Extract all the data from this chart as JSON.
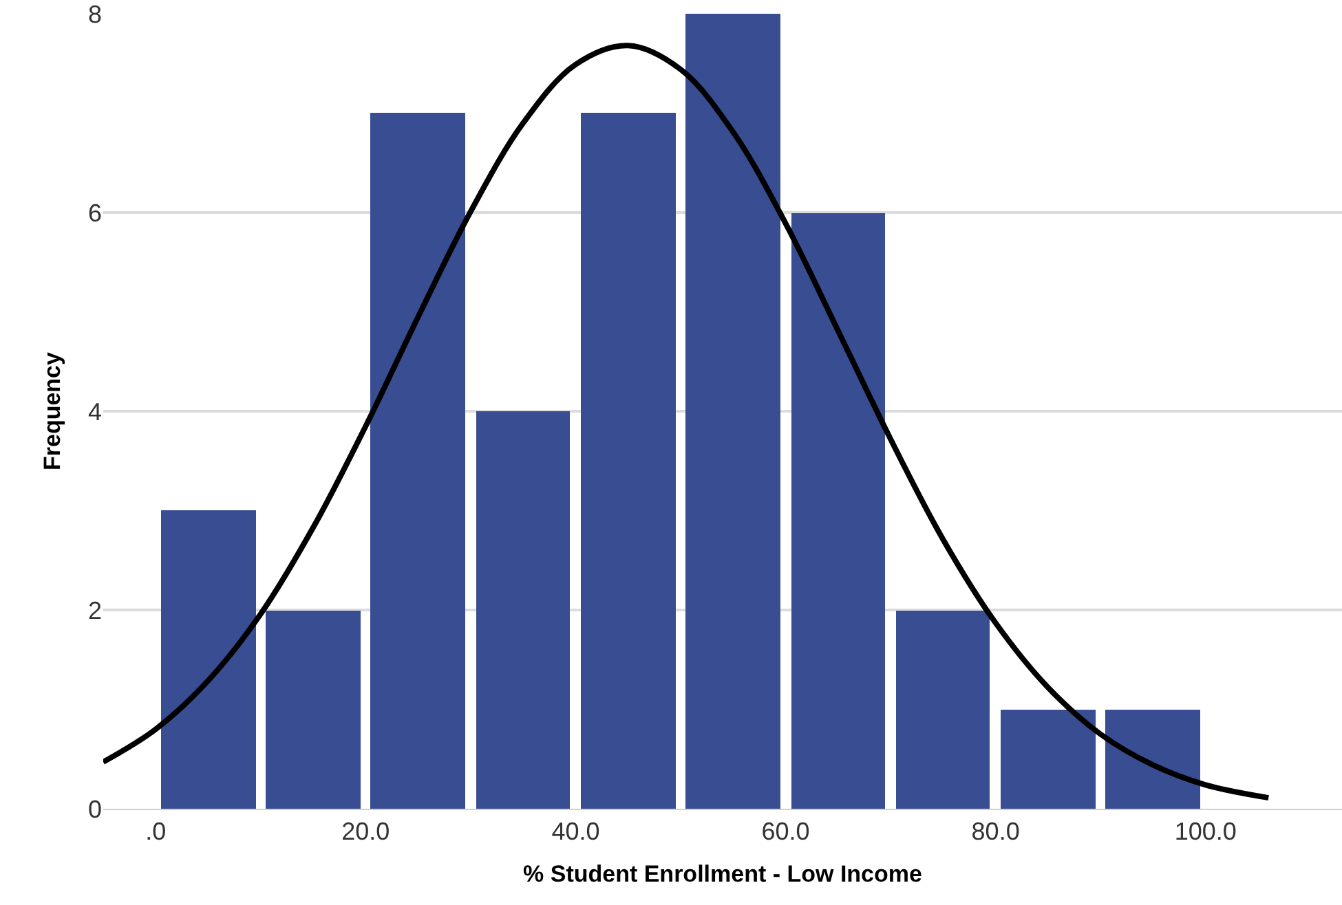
{
  "chart_data": {
    "type": "histogram",
    "xlabel": "% Student Enrollment - Low Income",
    "ylabel": "Frequency",
    "series": [
      {
        "type": "histogram",
        "bins": [
          0,
          10,
          20,
          30,
          40,
          50,
          60,
          70,
          80,
          90,
          100
        ],
        "values": [
          3,
          2,
          7,
          4,
          7,
          8,
          6,
          2,
          1,
          1
        ],
        "color": "#394d92"
      },
      {
        "type": "line",
        "color": "#000000",
        "x": [
          -5,
          0,
          5,
          10,
          15,
          20,
          25,
          30,
          35,
          40,
          45,
          50,
          55,
          60,
          65,
          70,
          75,
          80,
          85,
          90,
          95,
          100,
          106
        ],
        "values": [
          0.47,
          0.8,
          1.29,
          1.96,
          2.83,
          3.85,
          4.95,
          6.01,
          6.9,
          7.49,
          7.68,
          7.44,
          6.81,
          5.89,
          4.81,
          3.72,
          2.71,
          1.87,
          1.22,
          0.75,
          0.44,
          0.24,
          0.11
        ]
      }
    ],
    "xlim": [
      -5,
      113
    ],
    "xticks": [
      {
        "value": 0,
        "label": ".0"
      },
      {
        "value": 20,
        "label": "20.0"
      },
      {
        "value": 40,
        "label": "40.0"
      },
      {
        "value": 60,
        "label": "60.0"
      },
      {
        "value": 80,
        "label": "80.0"
      },
      {
        "value": 100,
        "label": "100.0"
      }
    ],
    "ylim": [
      0,
      8
    ],
    "yticks": [
      0,
      2,
      4,
      6,
      8
    ],
    "grid": "y",
    "marker": "none",
    "line_style": "solid"
  }
}
